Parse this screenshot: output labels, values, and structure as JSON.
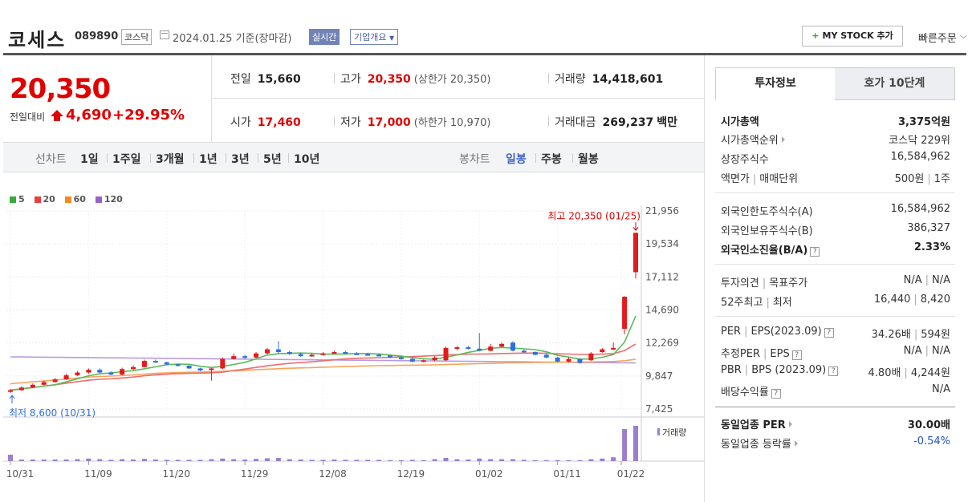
{
  "header": {
    "name": "코세스",
    "code": "089890",
    "market": "코스닥",
    "date": "2024.01.25  기준(장마감)",
    "realtime": "실시간",
    "corp_info": "기업개요",
    "my_stock": "MY STOCK 추가",
    "quick_order": "빠른주문"
  },
  "price": {
    "current": "20,350",
    "change_label": "전일대비",
    "change": "4,690",
    "change_pct": "+29.95%",
    "color_up": "#e00000"
  },
  "stats": {
    "prev_label": "전일",
    "prev": "15,660",
    "high_label": "고가",
    "high": "20,350",
    "upper_limit": "(상한가 20,350)",
    "volume_label": "거래량",
    "volume": "14,418,601",
    "open_label": "시가",
    "open": "17,460",
    "low_label": "저가",
    "low": "17,000",
    "lower_limit": "(하한가 10,970)",
    "amount_label": "거래대금",
    "amount": "269,237",
    "amount_unit": "백만"
  },
  "periods": {
    "line_label": "선차트",
    "line_items": [
      "1일",
      "1주일",
      "3개월",
      "1년",
      "3년",
      "5년",
      "10년"
    ],
    "candle_label": "봉차트",
    "candle_items": [
      "일봉",
      "주봉",
      "월봉"
    ],
    "active": "일봉"
  },
  "chart_data": {
    "type": "candlestick",
    "legend": [
      "5",
      "20",
      "60",
      "120"
    ],
    "legend_colors": [
      "#3aaa3a",
      "#e84040",
      "#f08a20",
      "#9a62c8"
    ],
    "y_ticks": [
      "21,956",
      "19,534",
      "17,112",
      "14,690",
      "12,269",
      "9,847",
      "7,425"
    ],
    "ylim": [
      7425,
      21956
    ],
    "x_labels": [
      "10/31",
      "11/09",
      "11/20",
      "11/29",
      "12/08",
      "12/19",
      "01/02",
      "01/11",
      "01/22"
    ],
    "high_annotation": "최고 20,350 (01/25)",
    "low_annotation": "최저 8,600 (10/31)",
    "volume_label": "거래량",
    "candles": [
      {
        "o": 8700,
        "c": 8800,
        "h": 8900,
        "l": 8600
      },
      {
        "o": 8800,
        "c": 9000,
        "h": 9100,
        "l": 8750
      },
      {
        "o": 9000,
        "c": 9200,
        "h": 9300,
        "l": 8950
      },
      {
        "o": 9200,
        "c": 9400,
        "h": 9500,
        "l": 9150
      },
      {
        "o": 9400,
        "c": 9600,
        "h": 9700,
        "l": 9350
      },
      {
        "o": 9600,
        "c": 9900,
        "h": 10000,
        "l": 9550
      },
      {
        "o": 9900,
        "c": 10100,
        "h": 10200,
        "l": 9850
      },
      {
        "o": 10100,
        "c": 10300,
        "h": 10400,
        "l": 10000
      },
      {
        "o": 10300,
        "c": 10100,
        "h": 10400,
        "l": 10000
      },
      {
        "o": 10100,
        "c": 9950,
        "h": 10200,
        "l": 9900
      },
      {
        "o": 9950,
        "c": 10350,
        "h": 10450,
        "l": 9900
      },
      {
        "o": 10350,
        "c": 10500,
        "h": 10600,
        "l": 10300
      },
      {
        "o": 10500,
        "c": 10950,
        "h": 11050,
        "l": 10450
      },
      {
        "o": 10950,
        "c": 10850,
        "h": 11050,
        "l": 10800
      },
      {
        "o": 10850,
        "c": 10700,
        "h": 10900,
        "l": 10650
      },
      {
        "o": 10700,
        "c": 10600,
        "h": 10750,
        "l": 10550
      },
      {
        "o": 10600,
        "c": 10400,
        "h": 10650,
        "l": 10350
      },
      {
        "o": 10400,
        "c": 10250,
        "h": 10450,
        "l": 10200
      },
      {
        "o": 10300,
        "c": 10400,
        "h": 10450,
        "l": 9500
      },
      {
        "o": 10400,
        "c": 11100,
        "h": 11200,
        "l": 10350
      },
      {
        "o": 11100,
        "c": 11300,
        "h": 11500,
        "l": 11050
      },
      {
        "o": 11300,
        "c": 11200,
        "h": 11400,
        "l": 11100
      },
      {
        "o": 11200,
        "c": 11500,
        "h": 11600,
        "l": 11150
      },
      {
        "o": 11500,
        "c": 11800,
        "h": 11900,
        "l": 11450
      },
      {
        "o": 11800,
        "c": 11600,
        "h": 12400,
        "l": 11500
      },
      {
        "o": 11600,
        "c": 11450,
        "h": 11700,
        "l": 11400
      },
      {
        "o": 11450,
        "c": 11300,
        "h": 11550,
        "l": 11250
      },
      {
        "o": 11300,
        "c": 11400,
        "h": 11500,
        "l": 11250
      },
      {
        "o": 11400,
        "c": 11500,
        "h": 11600,
        "l": 11350
      },
      {
        "o": 11500,
        "c": 11600,
        "h": 11700,
        "l": 11450
      },
      {
        "o": 11600,
        "c": 11500,
        "h": 11700,
        "l": 11450
      },
      {
        "o": 11500,
        "c": 11450,
        "h": 11600,
        "l": 11400
      },
      {
        "o": 11450,
        "c": 11400,
        "h": 11550,
        "l": 11350
      },
      {
        "o": 11400,
        "c": 11350,
        "h": 11500,
        "l": 11300
      },
      {
        "o": 11350,
        "c": 11200,
        "h": 11400,
        "l": 11150
      },
      {
        "o": 11200,
        "c": 11100,
        "h": 11300,
        "l": 11050
      },
      {
        "o": 11100,
        "c": 10900,
        "h": 11200,
        "l": 10850
      },
      {
        "o": 10900,
        "c": 11000,
        "h": 11050,
        "l": 10850
      },
      {
        "o": 11000,
        "c": 11200,
        "h": 11300,
        "l": 10950
      },
      {
        "o": 11000,
        "c": 11900,
        "h": 12000,
        "l": 10950
      },
      {
        "o": 11850,
        "c": 11950,
        "h": 12050,
        "l": 11750
      },
      {
        "o": 11950,
        "c": 11850,
        "h": 12050,
        "l": 11800
      },
      {
        "o": 11850,
        "c": 11700,
        "h": 13000,
        "l": 11650
      },
      {
        "o": 11700,
        "c": 12000,
        "h": 12200,
        "l": 11650
      },
      {
        "o": 12000,
        "c": 12200,
        "h": 12300,
        "l": 11950
      },
      {
        "o": 12300,
        "c": 11700,
        "h": 12400,
        "l": 11650
      },
      {
        "o": 11700,
        "c": 11600,
        "h": 11800,
        "l": 11550
      },
      {
        "o": 11600,
        "c": 11400,
        "h": 11650,
        "l": 11350
      },
      {
        "o": 11400,
        "c": 11200,
        "h": 11450,
        "l": 11150
      },
      {
        "o": 11200,
        "c": 10900,
        "h": 11250,
        "l": 10850
      },
      {
        "o": 10900,
        "c": 11100,
        "h": 11200,
        "l": 10850
      },
      {
        "o": 11100,
        "c": 10800,
        "h": 11150,
        "l": 10750
      },
      {
        "o": 11000,
        "c": 11500,
        "h": 11600,
        "l": 10950
      },
      {
        "o": 11600,
        "c": 11800,
        "h": 11900,
        "l": 11550
      },
      {
        "o": 11800,
        "c": 11900,
        "h": 12300,
        "l": 11750
      },
      {
        "o": 13300,
        "c": 15660,
        "h": 15700,
        "l": 12900
      },
      {
        "o": 17460,
        "c": 20350,
        "h": 20350,
        "l": 17000
      }
    ],
    "volumes": [
      20,
      5,
      5,
      5,
      5,
      5,
      6,
      8,
      6,
      4,
      6,
      5,
      7,
      5,
      4,
      4,
      4,
      4,
      6,
      8,
      6,
      5,
      7,
      9,
      10,
      6,
      5,
      4,
      4,
      5,
      4,
      4,
      4,
      4,
      3,
      3,
      4,
      3,
      6,
      10,
      6,
      5,
      8,
      6,
      6,
      6,
      4,
      3,
      3,
      3,
      3,
      3,
      6,
      8,
      12,
      100,
      110
    ]
  },
  "invest": {
    "tab_invest": "투자정보",
    "tab_hoga": "호가 10단계",
    "mktcap_label": "시가총액",
    "mktcap": "3,375억원",
    "rank_label": "시가총액순위",
    "rank": "코스닥 229위",
    "shares_label": "상장주식수",
    "shares": "16,584,962",
    "par_label": "액면가",
    "unit_label": "매매단위",
    "par": "500원",
    "unit": "1주",
    "foreign_limit_label": "외국인한도주식수(A)",
    "foreign_limit": "16,584,962",
    "foreign_hold_label": "외국인보유주식수(B)",
    "foreign_hold": "386,327",
    "foreign_ratio_label": "외국인소진율(B/A)",
    "foreign_ratio": "2.33%",
    "opinion_label": "투자의견",
    "target_label": "목표주가",
    "opinion": "N/A",
    "target": "N/A",
    "w52h_label": "52주최고",
    "w52l_label": "최저",
    "w52h": "16,440",
    "w52l": "8,420",
    "per_label": "PER",
    "eps_label": "EPS(2023.09)",
    "per": "34.26배",
    "eps": "594원",
    "eper_label": "추정PER",
    "eeps_label": "EPS",
    "eper": "N/A",
    "eeps": "N/A",
    "pbr_label": "PBR",
    "bps_label": "BPS (2023.09)",
    "pbr": "4.80배",
    "bps": "4,244원",
    "div_label": "배당수익률",
    "div": "N/A",
    "ind_per_label": "동일업종 PER",
    "ind_per": "30.00배",
    "ind_chg_label": "동일업종 등락률",
    "ind_chg": "-0.54%"
  }
}
